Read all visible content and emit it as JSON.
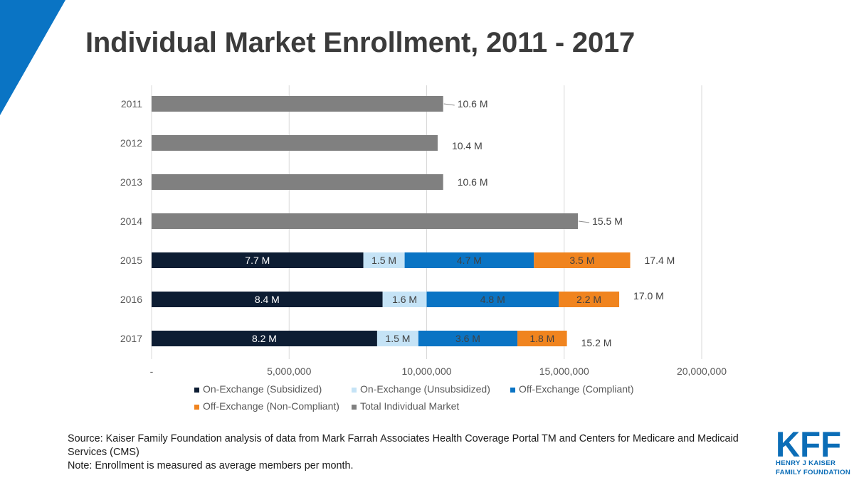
{
  "title": "Individual Market Enrollment, 2011 - 2017",
  "colors": {
    "subsidized": "#0d1d33",
    "unsubsidized": "#c5e3f6",
    "compliant": "#0a74c4",
    "non_compliant": "#f0841f",
    "total": "#808080",
    "brand": "#0b6db7"
  },
  "chart_data": {
    "type": "bar",
    "orientation": "horizontal",
    "stacked": true,
    "categories": [
      "2011",
      "2012",
      "2013",
      "2014",
      "2015",
      "2016",
      "2017"
    ],
    "series": [
      {
        "name": "On-Exchange (Subsidized)",
        "color_key": "subsidized",
        "values": [
          null,
          null,
          null,
          null,
          7700000,
          8400000,
          8200000
        ],
        "labels": [
          "",
          "",
          "",
          "",
          "7.7 M",
          "8.4 M",
          "8.2 M"
        ]
      },
      {
        "name": "On-Exchange (Unsubsidized)",
        "color_key": "unsubsidized",
        "values": [
          null,
          null,
          null,
          null,
          1500000,
          1600000,
          1500000
        ],
        "labels": [
          "",
          "",
          "",
          "",
          "1.5 M",
          "1.6 M",
          "1.5 M"
        ]
      },
      {
        "name": "Off-Exchange (Compliant)",
        "color_key": "compliant",
        "values": [
          null,
          null,
          null,
          null,
          4700000,
          4800000,
          3600000
        ],
        "labels": [
          "",
          "",
          "",
          "",
          "4.7 M",
          "4.8 M",
          "3.6 M"
        ]
      },
      {
        "name": "Off-Exchange (Non-Compliant)",
        "color_key": "non_compliant",
        "values": [
          null,
          null,
          null,
          null,
          3500000,
          2200000,
          1800000
        ],
        "labels": [
          "",
          "",
          "",
          "",
          "3.5 M",
          "2.2 M",
          "1.8 M"
        ]
      },
      {
        "name": "Total Individual Market",
        "color_key": "total",
        "values": [
          10600000,
          10400000,
          10600000,
          15500000,
          null,
          null,
          null
        ],
        "labels": [
          "10.6 M",
          "10.4 M",
          "10.6 M",
          "15.5 M",
          "",
          "",
          ""
        ]
      }
    ],
    "totals": [
      "10.6 M",
      "10.4 M",
      "10.6 M",
      "15.5 M",
      "17.4 M",
      "17.0 M",
      "15.2 M"
    ],
    "xlim": [
      0,
      20000000
    ],
    "xticks": [
      0,
      5000000,
      10000000,
      15000000,
      20000000
    ],
    "xtick_labels": [
      "-",
      "5,000,000",
      "10,000,000",
      "15,000,000",
      "20,000,000"
    ],
    "grid": true,
    "legend_position": "bottom",
    "xlabel": "",
    "ylabel": ""
  },
  "source": {
    "line1": "Source: Kaiser Family Foundation analysis of data from Mark Farrah Associates Health Coverage Portal TM and Centers for Medicare and Medicaid Services (CMS)",
    "line2": "Note: Enrollment is measured as average members per month."
  },
  "logo": {
    "mark": "KFF",
    "line1": "HENRY J KAISER",
    "line2": "FAMILY FOUNDATION"
  }
}
